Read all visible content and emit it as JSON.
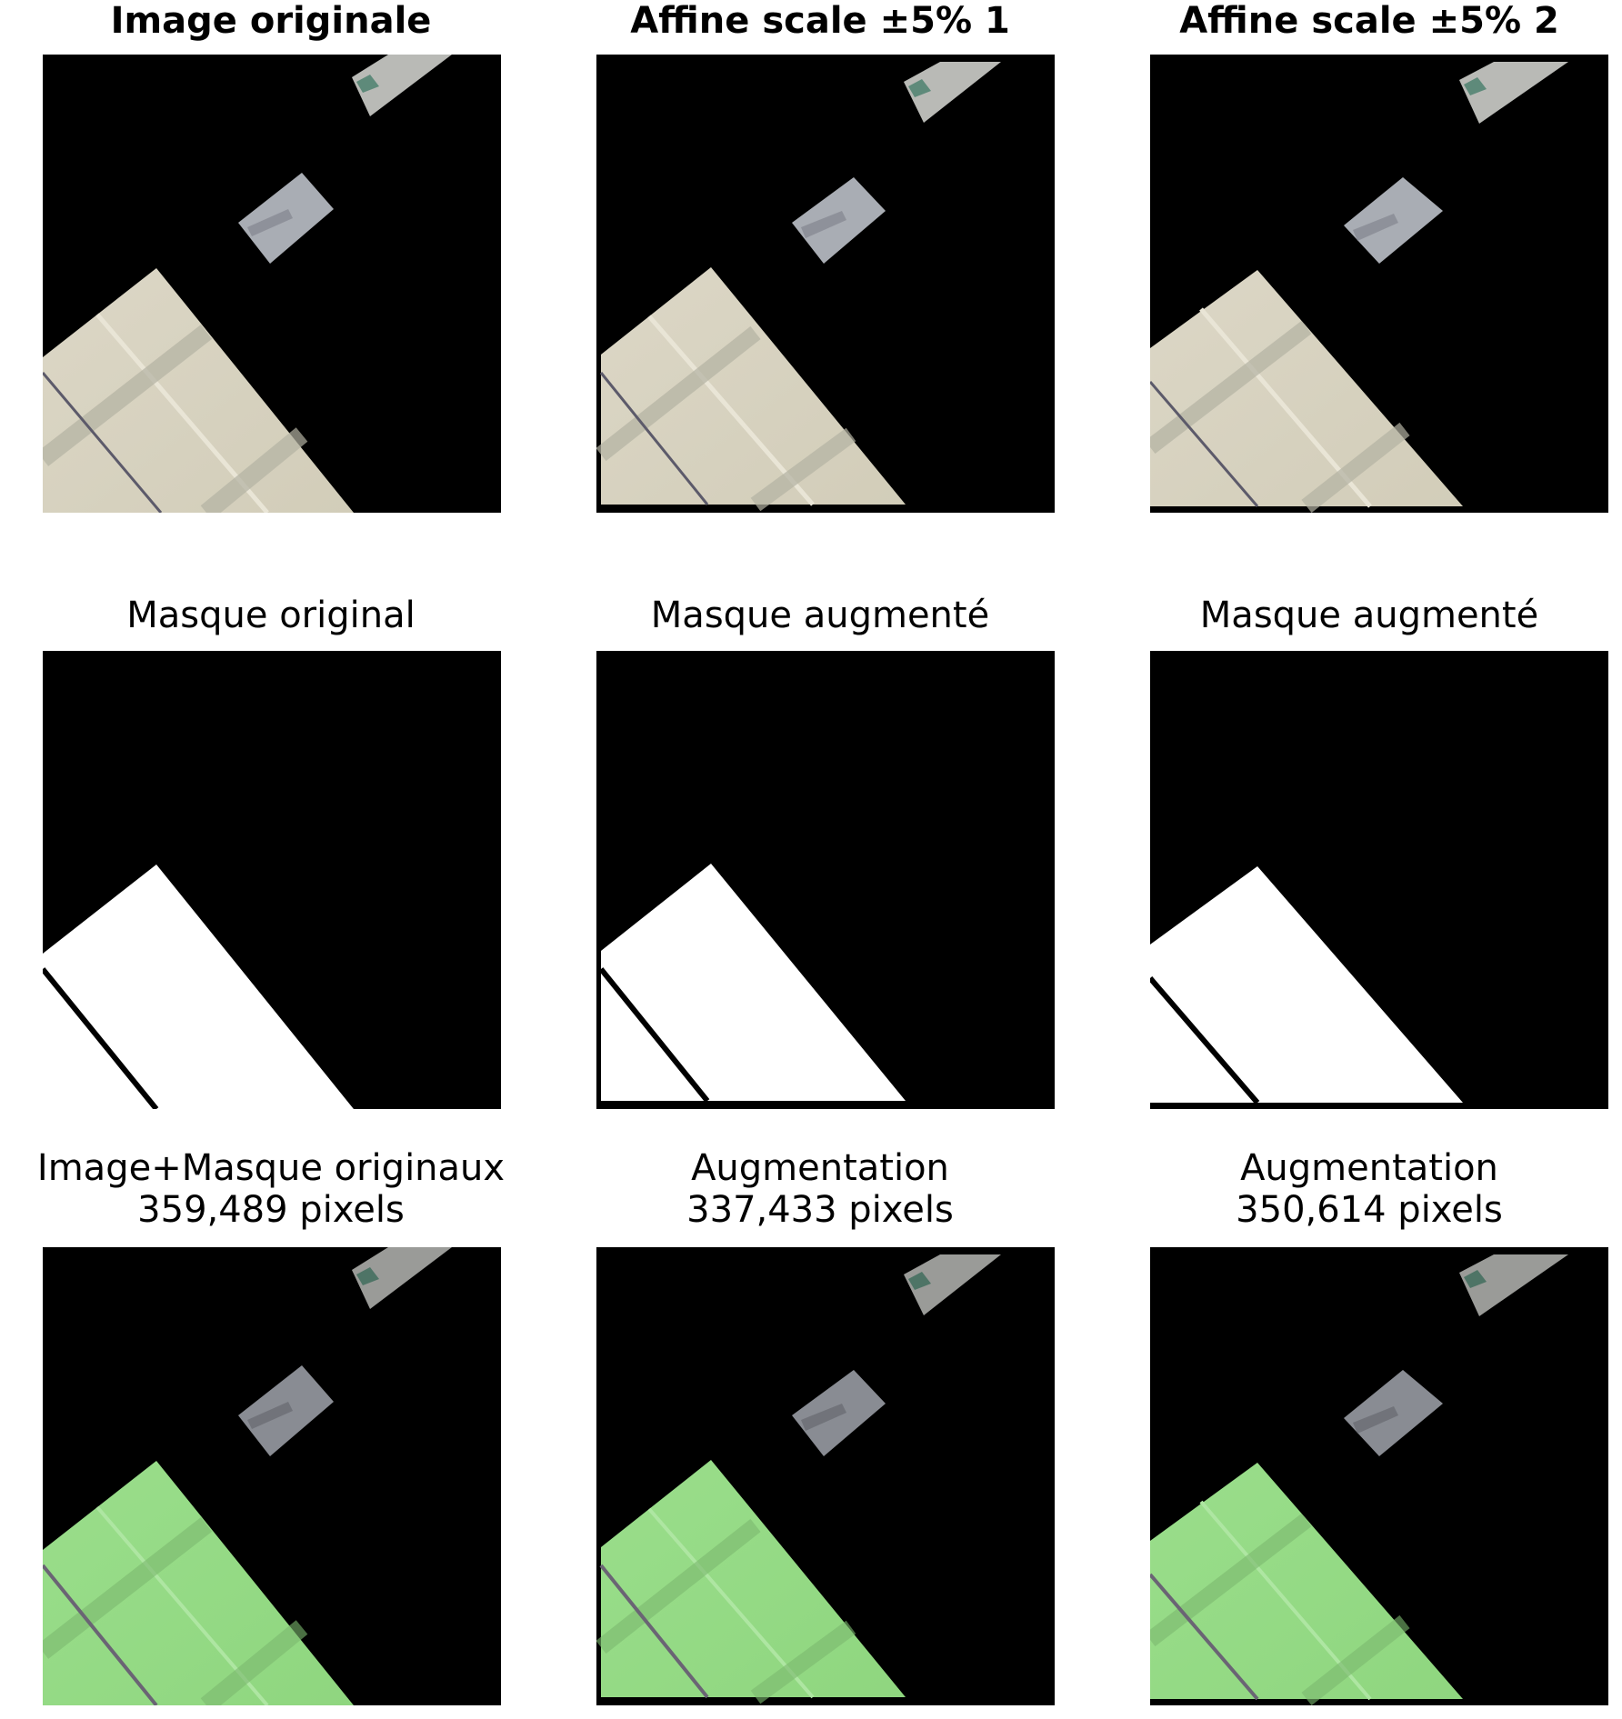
{
  "row1": {
    "titles": [
      "Image originale",
      "Affine scale ±5% 1",
      "Affine scale ±5% 2"
    ]
  },
  "row2": {
    "titles": [
      "Masque original",
      "Masque augmenté",
      "Masque augmenté"
    ]
  },
  "row3": {
    "titles": [
      "Image+Masque originaux",
      "Augmentation",
      "Augmentation"
    ],
    "pixel_counts": [
      "359,489 pixels",
      "337,433 pixels",
      "350,614 pixels"
    ]
  },
  "colors": {
    "background": "#000000",
    "roof": "#d8d3c1",
    "mask": "#ffffff",
    "overlay": "#95dc86"
  }
}
